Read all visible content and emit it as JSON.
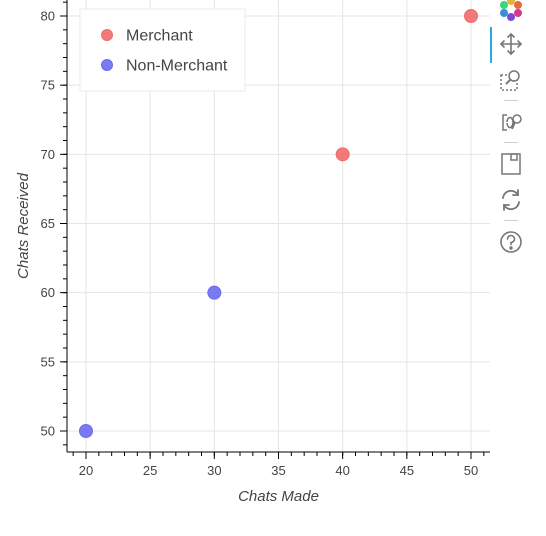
{
  "chart_data": {
    "type": "scatter",
    "title": "",
    "xlabel": "Chats Made",
    "ylabel": "Chats Received",
    "xlim": [
      18.5,
      51.5
    ],
    "ylim": [
      48.6,
      81.4
    ],
    "x_ticks": [
      20,
      25,
      30,
      35,
      40,
      45,
      50
    ],
    "y_ticks": [
      50,
      55,
      60,
      65,
      70,
      75,
      80
    ],
    "grid": true,
    "legend_position": "top-left",
    "series": [
      {
        "name": "Merchant",
        "color": "#f26b6b",
        "points": [
          {
            "x": 40,
            "y": 70
          },
          {
            "x": 50,
            "y": 80
          }
        ]
      },
      {
        "name": "Non-Merchant",
        "color": "#6b6bf2",
        "points": [
          {
            "x": 20,
            "y": 50
          },
          {
            "x": 30,
            "y": 60
          }
        ]
      }
    ]
  },
  "toolbar": {
    "tools": [
      "bokeh-logo-icon",
      "pan-icon",
      "box-zoom-icon",
      "wheel-zoom-icon",
      "save-icon",
      "reset-icon",
      "help-icon"
    ],
    "active_color": "#26aae1"
  }
}
